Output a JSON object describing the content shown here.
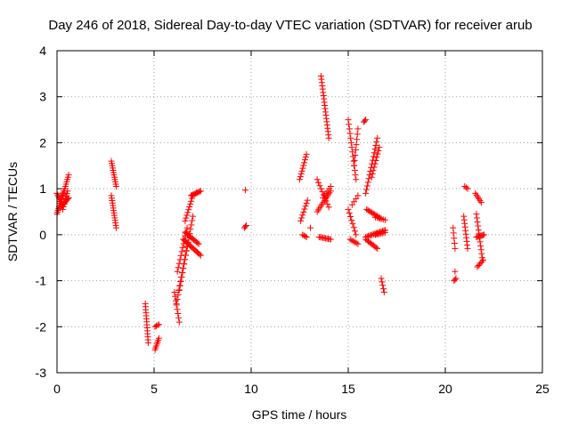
{
  "chart_data": {
    "type": "scatter",
    "title": "Day 246 of 2018, Sidereal Day-to-day VTEC variation (SDTVAR) for receiver arub",
    "xlabel": "GPS time / hours",
    "ylabel": "SDTVAR / TECUs",
    "xlim": [
      0,
      25
    ],
    "ylim": [
      -3,
      4
    ],
    "xticks": [
      "0",
      "5",
      "10",
      "15",
      "20",
      "25"
    ],
    "yticks": [
      "-3",
      "-2",
      "-1",
      "0",
      "1",
      "2",
      "3",
      "4"
    ],
    "grid": true,
    "marker": "plus",
    "color": "#ff0000",
    "series": [
      {
        "name": "arub",
        "tracks": [
          {
            "x0": 0.0,
            "y0": 0.45,
            "x1": 0.35,
            "y1": 0.95,
            "n": 14
          },
          {
            "x0": 0.0,
            "y0": 0.9,
            "x1": 0.25,
            "y1": 0.65,
            "n": 8
          },
          {
            "x0": 0.2,
            "y0": 0.6,
            "x1": 0.6,
            "y1": 0.8,
            "n": 10
          },
          {
            "x0": 0.3,
            "y0": 0.85,
            "x1": 0.6,
            "y1": 1.3,
            "n": 10
          },
          {
            "x0": 0.3,
            "y0": 0.55,
            "x1": 0.55,
            "y1": 0.95,
            "n": 8
          },
          {
            "x0": 2.8,
            "y0": 1.6,
            "x1": 3.05,
            "y1": 1.05,
            "n": 12
          },
          {
            "x0": 2.8,
            "y0": 0.85,
            "x1": 3.05,
            "y1": 0.15,
            "n": 14
          },
          {
            "x0": 4.55,
            "y0": -1.5,
            "x1": 4.7,
            "y1": -2.35,
            "n": 14
          },
          {
            "x0": 5.05,
            "y0": -2.0,
            "x1": 5.25,
            "y1": -1.95,
            "n": 4
          },
          {
            "x0": 5.05,
            "y0": -2.5,
            "x1": 5.25,
            "y1": -2.25,
            "n": 7
          },
          {
            "x0": 6.05,
            "y0": -1.25,
            "x1": 6.3,
            "y1": -1.9,
            "n": 8
          },
          {
            "x0": 6.15,
            "y0": -1.5,
            "x1": 6.7,
            "y1": -0.25,
            "n": 14
          },
          {
            "x0": 6.3,
            "y0": -1.2,
            "x1": 7.0,
            "y1": 0.4,
            "n": 18
          },
          {
            "x0": 6.2,
            "y0": -0.8,
            "x1": 6.7,
            "y1": 0.15,
            "n": 12
          },
          {
            "x0": 6.6,
            "y0": 0.3,
            "x1": 7.0,
            "y1": 0.85,
            "n": 10
          },
          {
            "x0": 6.9,
            "y0": 0.85,
            "x1": 7.4,
            "y1": 0.95,
            "n": 10
          },
          {
            "x0": 6.5,
            "y0": -0.1,
            "x1": 7.4,
            "y1": -0.45,
            "n": 16
          },
          {
            "x0": 6.6,
            "y0": 0.05,
            "x1": 7.3,
            "y1": -0.2,
            "n": 12
          },
          {
            "x0": 9.7,
            "y0": 0.97,
            "x1": 9.7,
            "y1": 0.97,
            "n": 1
          },
          {
            "x0": 9.65,
            "y0": 0.15,
            "x1": 9.75,
            "y1": 0.2,
            "n": 3
          },
          {
            "x0": 12.5,
            "y0": 1.2,
            "x1": 12.85,
            "y1": 1.75,
            "n": 10
          },
          {
            "x0": 12.55,
            "y0": 0.3,
            "x1": 12.9,
            "y1": 0.75,
            "n": 8
          },
          {
            "x0": 12.65,
            "y0": 0.0,
            "x1": 12.85,
            "y1": -0.05,
            "n": 4
          },
          {
            "x0": 13.05,
            "y0": 0.15,
            "x1": 13.05,
            "y1": 0.15,
            "n": 1
          },
          {
            "x0": 13.6,
            "y0": 3.45,
            "x1": 14.0,
            "y1": 2.1,
            "n": 20
          },
          {
            "x0": 13.4,
            "y0": 1.2,
            "x1": 14.0,
            "y1": 0.6,
            "n": 10
          },
          {
            "x0": 13.4,
            "y0": 0.5,
            "x1": 14.1,
            "y1": 0.95,
            "n": 12
          },
          {
            "x0": 13.7,
            "y0": 0.8,
            "x1": 14.1,
            "y1": 1.05,
            "n": 6
          },
          {
            "x0": 13.5,
            "y0": -0.05,
            "x1": 14.1,
            "y1": -0.1,
            "n": 10
          },
          {
            "x0": 15.0,
            "y0": 2.5,
            "x1": 15.4,
            "y1": 1.2,
            "n": 14
          },
          {
            "x0": 15.3,
            "y0": 1.5,
            "x1": 15.5,
            "y1": 2.3,
            "n": 8
          },
          {
            "x0": 15.0,
            "y0": 0.55,
            "x1": 15.4,
            "y1": 0.0,
            "n": 8
          },
          {
            "x0": 15.2,
            "y0": 0.65,
            "x1": 15.5,
            "y1": 0.85,
            "n": 4
          },
          {
            "x0": 15.1,
            "y0": -0.1,
            "x1": 15.5,
            "y1": -0.2,
            "n": 6
          },
          {
            "x0": 15.8,
            "y0": 2.45,
            "x1": 15.9,
            "y1": 2.5,
            "n": 3
          },
          {
            "x0": 15.9,
            "y0": 0.9,
            "x1": 16.5,
            "y1": 2.1,
            "n": 16
          },
          {
            "x0": 16.2,
            "y0": 1.25,
            "x1": 16.6,
            "y1": 1.9,
            "n": 10
          },
          {
            "x0": 15.95,
            "y0": 0.55,
            "x1": 16.7,
            "y1": 0.35,
            "n": 12
          },
          {
            "x0": 16.4,
            "y0": 0.38,
            "x1": 16.9,
            "y1": 0.32,
            "n": 6
          },
          {
            "x0": 15.9,
            "y0": -0.05,
            "x1": 16.9,
            "y1": 0.1,
            "n": 16
          },
          {
            "x0": 15.9,
            "y0": -0.1,
            "x1": 16.5,
            "y1": -0.3,
            "n": 10
          },
          {
            "x0": 16.4,
            "y0": 0.0,
            "x1": 16.9,
            "y1": 0.05,
            "n": 8
          },
          {
            "x0": 16.7,
            "y0": -0.95,
            "x1": 16.85,
            "y1": -1.25,
            "n": 5
          },
          {
            "x0": 20.45,
            "y0": -1.0,
            "x1": 20.55,
            "y1": -0.95,
            "n": 3
          },
          {
            "x0": 20.5,
            "y0": -0.8,
            "x1": 20.5,
            "y1": -0.8,
            "n": 1
          },
          {
            "x0": 20.4,
            "y0": 0.15,
            "x1": 20.5,
            "y1": -0.3,
            "n": 5
          },
          {
            "x0": 20.95,
            "y0": 0.4,
            "x1": 21.15,
            "y1": -0.3,
            "n": 10
          },
          {
            "x0": 21.0,
            "y0": 1.05,
            "x1": 21.15,
            "y1": 1.0,
            "n": 3
          },
          {
            "x0": 21.55,
            "y0": 0.9,
            "x1": 21.85,
            "y1": 0.7,
            "n": 6
          },
          {
            "x0": 21.6,
            "y0": 0.45,
            "x1": 21.9,
            "y1": -0.5,
            "n": 12
          },
          {
            "x0": 21.6,
            "y0": -0.05,
            "x1": 22.0,
            "y1": 0.0,
            "n": 8
          },
          {
            "x0": 21.65,
            "y0": -0.7,
            "x1": 21.95,
            "y1": -0.55,
            "n": 6
          }
        ]
      }
    ]
  }
}
